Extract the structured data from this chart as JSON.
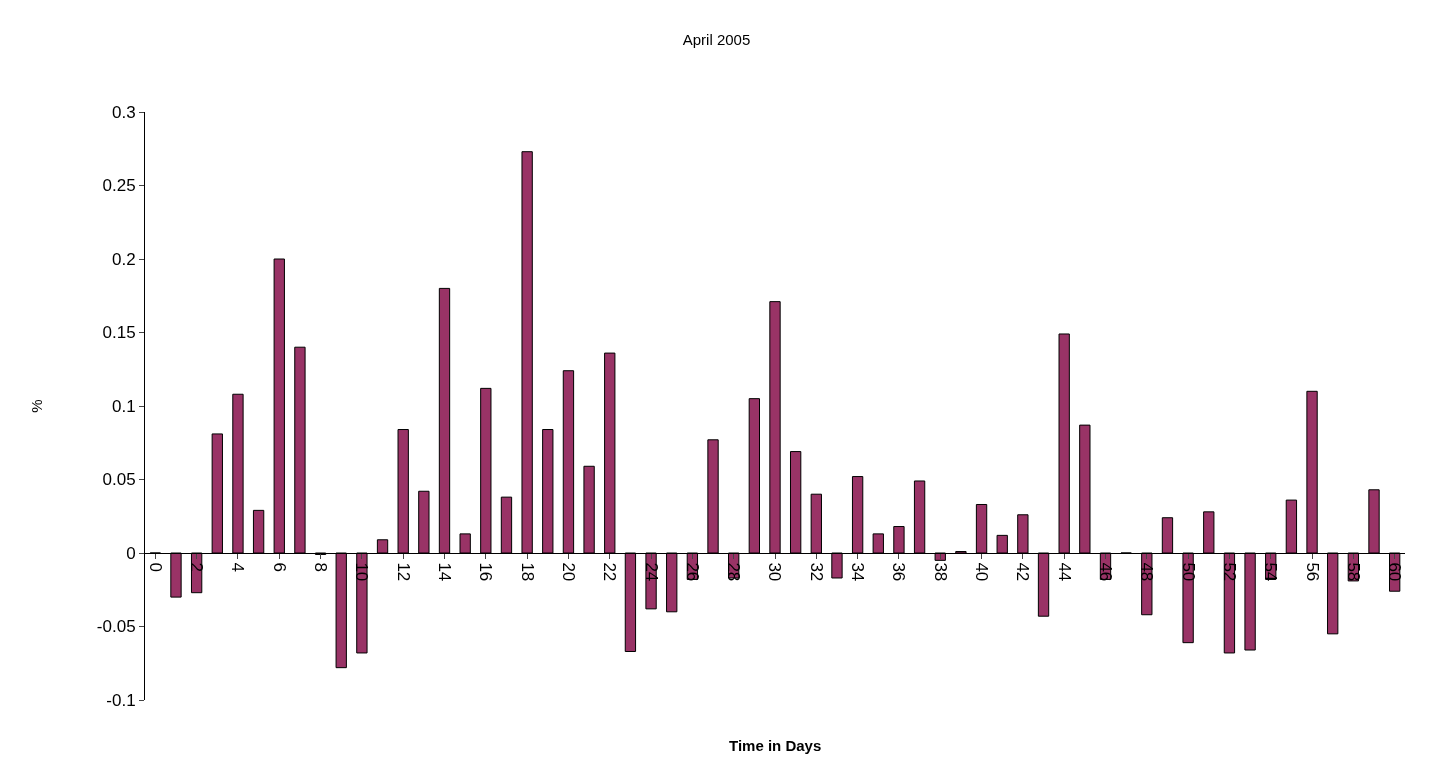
{
  "chart_data": {
    "type": "bar",
    "title": "April 2005",
    "xlabel": "Time in Days",
    "ylabel": "%",
    "categories": [
      "0",
      null,
      "2",
      null,
      "4",
      null,
      "6",
      null,
      "8",
      null,
      "10",
      null,
      "12",
      null,
      "14",
      null,
      "16",
      null,
      "18",
      null,
      "20",
      null,
      "22",
      null,
      "24",
      null,
      "26",
      null,
      "28",
      null,
      "30",
      null,
      "32",
      null,
      "34",
      null,
      "36",
      null,
      "38",
      null,
      "40",
      null,
      "42",
      null,
      "44",
      null,
      "46",
      null,
      "48",
      null,
      "50",
      null,
      "52",
      null,
      "54",
      null,
      "56",
      null,
      "58",
      null,
      "60"
    ],
    "values": [
      0,
      -0.03,
      -0.027,
      0.081,
      0.108,
      0.029,
      0.2,
      0.14,
      -0.001,
      -0.078,
      -0.068,
      0.009,
      0.084,
      0.042,
      0.18,
      0.013,
      0.112,
      0.038,
      0.273,
      0.084,
      0.124,
      0.059,
      0.136,
      -0.067,
      -0.038,
      -0.04,
      -0.018,
      0.077,
      -0.017,
      0.105,
      0.171,
      0.069,
      0.04,
      -0.017,
      0.052,
      0.013,
      0.018,
      0.049,
      -0.005,
      0.001,
      0.033,
      0.012,
      0.026,
      -0.043,
      0.149,
      0.087,
      -0.018,
      0,
      -0.042,
      0.024,
      -0.061,
      0.028,
      -0.068,
      -0.066,
      -0.018,
      0.036,
      0.11,
      -0.055,
      -0.019,
      0.043,
      -0.026
    ],
    "color": "#993366",
    "ylim": [
      -0.1,
      0.3
    ],
    "yticks": [
      -0.1,
      -0.05,
      0,
      0.05,
      0.1,
      0.15,
      0.2,
      0.25,
      0.3
    ]
  }
}
